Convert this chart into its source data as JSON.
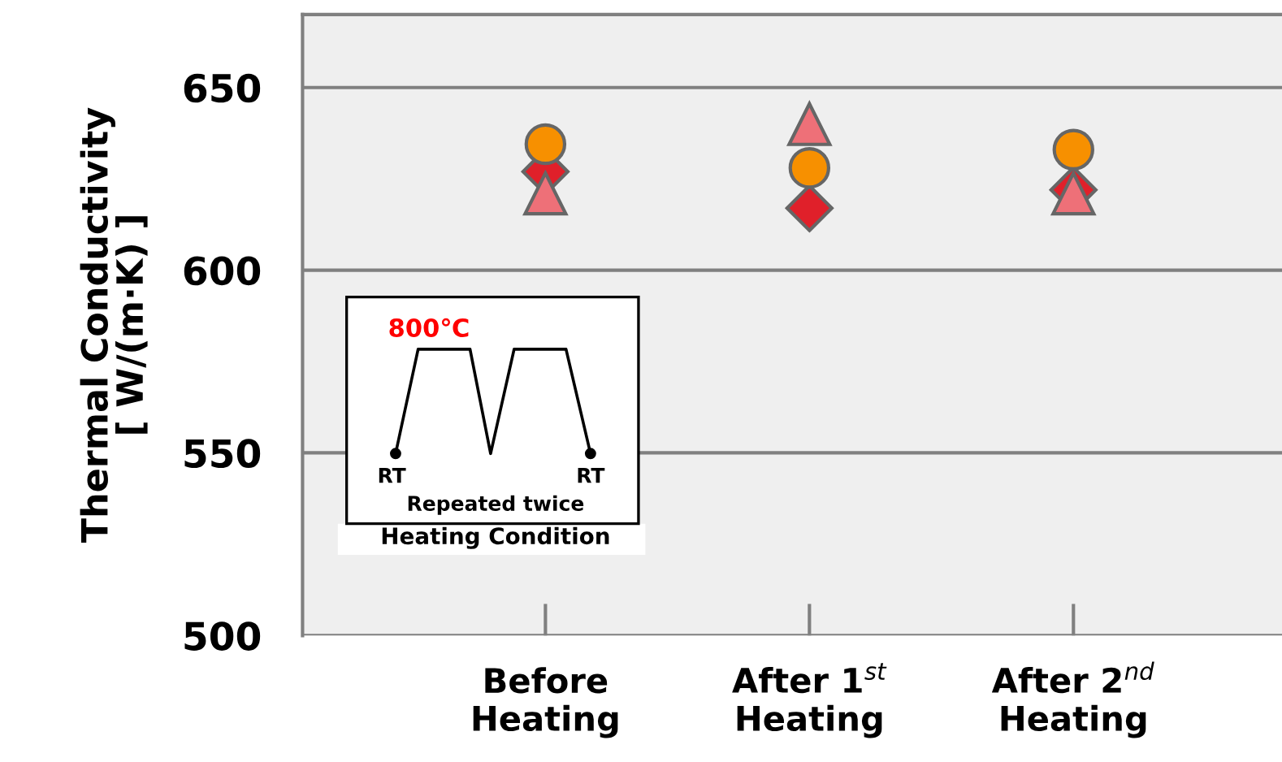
{
  "chart_data": {
    "type": "scatter",
    "ylabel": "Thermal Conductivity\n[ W/(m·K) ]",
    "categories": [
      "Before\nHeating",
      "After 1$^{st}$\nHeating",
      "After 2$^{nd}$\nHeating"
    ],
    "series": [
      {
        "color": "#e0202a",
        "marker": "diamond",
        "values": [
          627,
          617,
          622
        ]
      },
      {
        "color": "#ee7078",
        "marker": "triangle",
        "values": [
          621,
          640,
          621
        ]
      },
      {
        "color": "#f79000",
        "marker": "circle",
        "values": [
          634.5,
          628,
          633
        ]
      }
    ],
    "ylim": [
      500,
      670
    ],
    "yticks": [
      500,
      550,
      600,
      650
    ],
    "grid": "y",
    "legend": false,
    "annotations": [
      "800℃",
      "RT",
      "RT",
      "Repeated twice",
      "Heating Condition"
    ]
  }
}
